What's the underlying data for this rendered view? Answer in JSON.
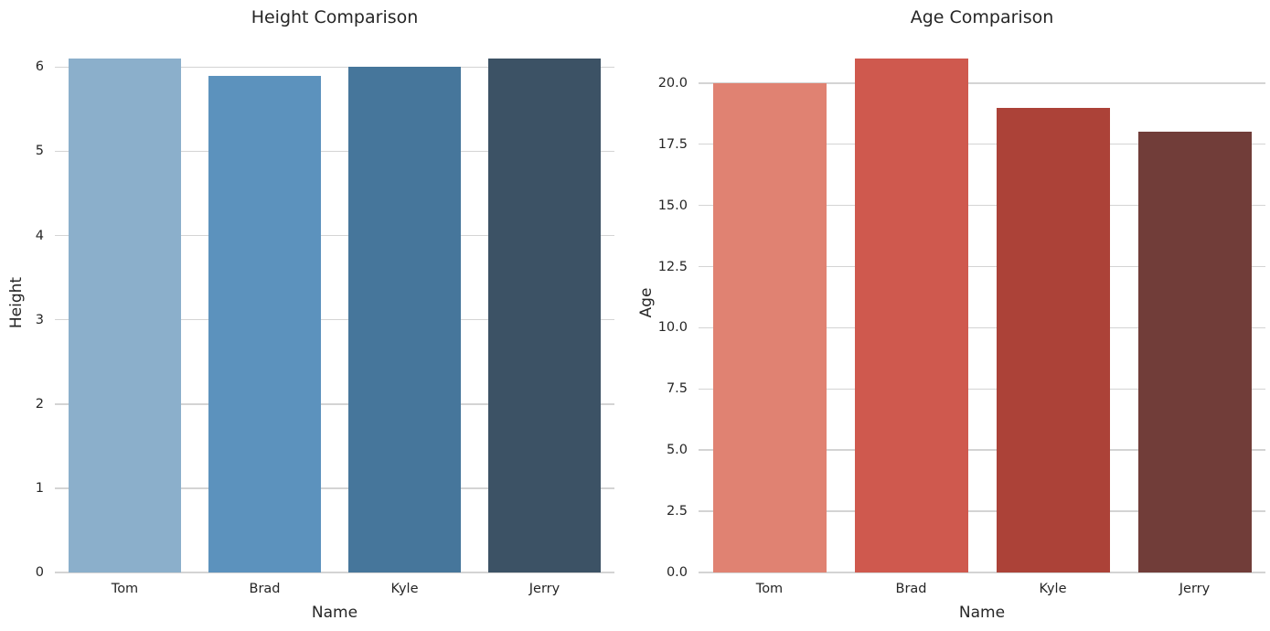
{
  "figure": {
    "background": "#ffffff",
    "text_color": "#262626",
    "grid_color": "#d4d4d4"
  },
  "chart_data": [
    {
      "type": "bar",
      "title": "Height Comparison",
      "xlabel": "Name",
      "ylabel": "Height",
      "categories": [
        "Tom",
        "Brad",
        "Kyle",
        "Jerry"
      ],
      "values": [
        6.1,
        5.9,
        6.0,
        6.1
      ],
      "bar_colors": [
        "#8BAFCB",
        "#5C92BD",
        "#46769B",
        "#3C5265"
      ],
      "ylim": [
        0,
        6.405
      ],
      "yticks": [
        0,
        1,
        2,
        3,
        4,
        5,
        6
      ],
      "ytick_labels": [
        "0",
        "1",
        "2",
        "3",
        "4",
        "5",
        "6"
      ],
      "grid": true,
      "legend": null
    },
    {
      "type": "bar",
      "title": "Age Comparison",
      "xlabel": "Name",
      "ylabel": "Age",
      "categories": [
        "Tom",
        "Brad",
        "Kyle",
        "Jerry"
      ],
      "values": [
        20,
        21,
        19,
        18
      ],
      "bar_colors": [
        "#E08272",
        "#CF594E",
        "#AC4238",
        "#713D39"
      ],
      "ylim": [
        0,
        22.05
      ],
      "yticks": [
        0,
        2.5,
        5,
        7.5,
        10,
        12.5,
        15,
        17.5,
        20
      ],
      "ytick_labels": [
        "0.0",
        "2.5",
        "5.0",
        "7.5",
        "10.0",
        "12.5",
        "15.0",
        "17.5",
        "20.0"
      ],
      "grid": true,
      "legend": null
    }
  ]
}
